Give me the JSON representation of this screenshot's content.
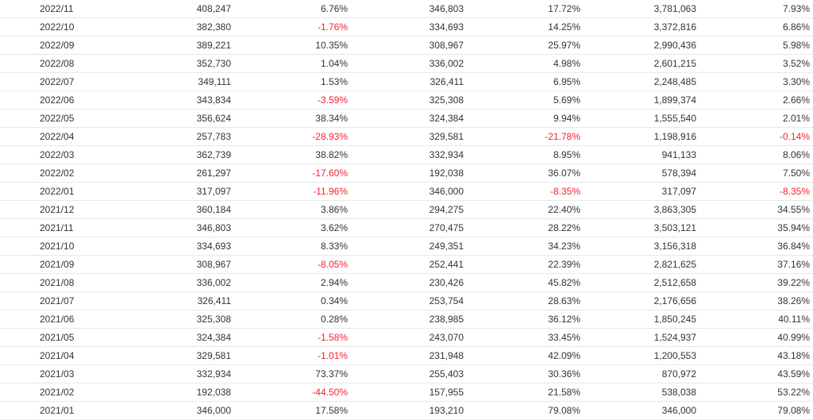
{
  "colors": {
    "negative": "#f5222d",
    "text": "#333333",
    "row_border": "#e8e8e8"
  },
  "rows": [
    [
      "2022/11",
      "408,247",
      "6.76%",
      "346,803",
      "17.72%",
      "3,781,063",
      "7.93%"
    ],
    [
      "2022/10",
      "382,380",
      "-1.76%",
      "334,693",
      "14.25%",
      "3,372,816",
      "6.86%"
    ],
    [
      "2022/09",
      "389,221",
      "10.35%",
      "308,967",
      "25.97%",
      "2,990,436",
      "5.98%"
    ],
    [
      "2022/08",
      "352,730",
      "1.04%",
      "336,002",
      "4.98%",
      "2,601,215",
      "3.52%"
    ],
    [
      "2022/07",
      "349,111",
      "1.53%",
      "326,411",
      "6.95%",
      "2,248,485",
      "3.30%"
    ],
    [
      "2022/06",
      "343,834",
      "-3.59%",
      "325,308",
      "5.69%",
      "1,899,374",
      "2.66%"
    ],
    [
      "2022/05",
      "356,624",
      "38.34%",
      "324,384",
      "9.94%",
      "1,555,540",
      "2.01%"
    ],
    [
      "2022/04",
      "257,783",
      "-28.93%",
      "329,581",
      "-21.78%",
      "1,198,916",
      "-0.14%"
    ],
    [
      "2022/03",
      "362,739",
      "38.82%",
      "332,934",
      "8.95%",
      "941,133",
      "8.06%"
    ],
    [
      "2022/02",
      "261,297",
      "-17.60%",
      "192,038",
      "36.07%",
      "578,394",
      "7.50%"
    ],
    [
      "2022/01",
      "317,097",
      "-11.96%",
      "346,000",
      "-8.35%",
      "317,097",
      "-8.35%"
    ],
    [
      "2021/12",
      "360,184",
      "3.86%",
      "294,275",
      "22.40%",
      "3,863,305",
      "34.55%"
    ],
    [
      "2021/11",
      "346,803",
      "3.62%",
      "270,475",
      "28.22%",
      "3,503,121",
      "35.94%"
    ],
    [
      "2021/10",
      "334,693",
      "8.33%",
      "249,351",
      "34.23%",
      "3,156,318",
      "36.84%"
    ],
    [
      "2021/09",
      "308,967",
      "-8.05%",
      "252,441",
      "22.39%",
      "2,821,625",
      "37.16%"
    ],
    [
      "2021/08",
      "336,002",
      "2.94%",
      "230,426",
      "45.82%",
      "2,512,658",
      "39.22%"
    ],
    [
      "2021/07",
      "326,411",
      "0.34%",
      "253,754",
      "28.63%",
      "2,176,656",
      "38.26%"
    ],
    [
      "2021/06",
      "325,308",
      "0.28%",
      "238,985",
      "36.12%",
      "1,850,245",
      "40.11%"
    ],
    [
      "2021/05",
      "324,384",
      "-1.58%",
      "243,070",
      "33.45%",
      "1,524,937",
      "40.99%"
    ],
    [
      "2021/04",
      "329,581",
      "-1.01%",
      "231,948",
      "42.09%",
      "1,200,553",
      "43.18%"
    ],
    [
      "2021/03",
      "332,934",
      "73.37%",
      "255,403",
      "30.36%",
      "870,972",
      "43.59%"
    ],
    [
      "2021/02",
      "192,038",
      "-44.50%",
      "157,955",
      "21.58%",
      "538,038",
      "53.22%"
    ],
    [
      "2021/01",
      "346,000",
      "17.58%",
      "193,210",
      "79.08%",
      "346,000",
      "79.08%"
    ]
  ]
}
